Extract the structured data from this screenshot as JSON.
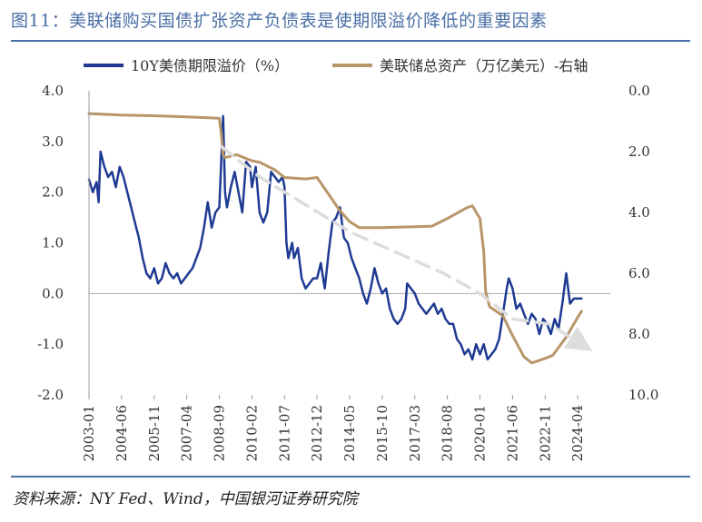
{
  "title": "图11：美联储购买国债扩张资产负债表是使期限溢价降低的重要因素",
  "source": "资料来源：NY Fed、Wind，中国银河证券研究院",
  "chart_data": {
    "type": "line",
    "x_tick_labels": [
      "2003-01",
      "2004-06",
      "2005-11",
      "2007-04",
      "2008-09",
      "2010-02",
      "2011-07",
      "2012-12",
      "2014-05",
      "2015-10",
      "2017-03",
      "2018-08",
      "2020-01",
      "2021-06",
      "2022-11",
      "2024-04"
    ],
    "left_axis": {
      "ylim": [
        -2.0,
        4.0
      ],
      "ticks": [
        "4.0",
        "3.0",
        "2.0",
        "1.0",
        "0.0",
        "-1.0",
        "-2.0"
      ]
    },
    "right_axis": {
      "ylim": [
        0.0,
        10.0
      ],
      "inverted": true,
      "ticks": [
        "0.0",
        "2.0",
        "4.0",
        "6.0",
        "8.0",
        "10.0"
      ]
    },
    "legend_placement": "top",
    "x_start": "2003-01",
    "series": [
      {
        "name": "10Y美债期限溢价（%）",
        "axis": "left",
        "color": "#1f3a93",
        "points": [
          [
            "2003-01",
            2.25
          ],
          [
            "2003-03",
            2.0
          ],
          [
            "2003-05",
            2.2
          ],
          [
            "2003-06",
            1.8
          ],
          [
            "2003-07",
            2.8
          ],
          [
            "2003-09",
            2.5
          ],
          [
            "2003-11",
            2.3
          ],
          [
            "2004-01",
            2.4
          ],
          [
            "2004-03",
            2.1
          ],
          [
            "2004-05",
            2.5
          ],
          [
            "2004-07",
            2.3
          ],
          [
            "2004-09",
            2.0
          ],
          [
            "2004-11",
            1.7
          ],
          [
            "2005-01",
            1.4
          ],
          [
            "2005-03",
            1.1
          ],
          [
            "2005-05",
            0.7
          ],
          [
            "2005-07",
            0.4
          ],
          [
            "2005-09",
            0.3
          ],
          [
            "2005-11",
            0.5
          ],
          [
            "2006-01",
            0.2
          ],
          [
            "2006-03",
            0.3
          ],
          [
            "2006-05",
            0.6
          ],
          [
            "2006-07",
            0.4
          ],
          [
            "2006-09",
            0.3
          ],
          [
            "2006-11",
            0.4
          ],
          [
            "2007-01",
            0.2
          ],
          [
            "2007-03",
            0.3
          ],
          [
            "2007-05",
            0.4
          ],
          [
            "2007-07",
            0.5
          ],
          [
            "2007-09",
            0.7
          ],
          [
            "2007-11",
            0.9
          ],
          [
            "2008-01",
            1.3
          ],
          [
            "2008-03",
            1.8
          ],
          [
            "2008-05",
            1.3
          ],
          [
            "2008-07",
            1.6
          ],
          [
            "2008-09",
            1.7
          ],
          [
            "2008-10",
            2.6
          ],
          [
            "2008-11",
            3.5
          ],
          [
            "2008-12",
            2.0
          ],
          [
            "2009-01",
            1.7
          ],
          [
            "2009-03",
            2.1
          ],
          [
            "2009-05",
            2.4
          ],
          [
            "2009-07",
            2.0
          ],
          [
            "2009-09",
            1.6
          ],
          [
            "2009-11",
            2.6
          ],
          [
            "2010-01",
            2.5
          ],
          [
            "2010-02",
            2.1
          ],
          [
            "2010-04",
            2.5
          ],
          [
            "2010-06",
            1.6
          ],
          [
            "2010-08",
            1.4
          ],
          [
            "2010-10",
            1.6
          ],
          [
            "2010-12",
            2.4
          ],
          [
            "2011-02",
            2.3
          ],
          [
            "2011-04",
            2.2
          ],
          [
            "2011-06",
            2.3
          ],
          [
            "2011-07",
            2.1
          ],
          [
            "2011-08",
            1.0
          ],
          [
            "2011-09",
            0.7
          ],
          [
            "2011-11",
            1.0
          ],
          [
            "2011-12",
            0.7
          ],
          [
            "2012-02",
            0.9
          ],
          [
            "2012-04",
            0.3
          ],
          [
            "2012-06",
            0.1
          ],
          [
            "2012-08",
            0.2
          ],
          [
            "2012-10",
            0.3
          ],
          [
            "2012-12",
            0.3
          ],
          [
            "2013-02",
            0.6
          ],
          [
            "2013-04",
            0.1
          ],
          [
            "2013-06",
            0.8
          ],
          [
            "2013-08",
            1.4
          ],
          [
            "2013-10",
            1.5
          ],
          [
            "2013-12",
            1.7
          ],
          [
            "2014-02",
            1.1
          ],
          [
            "2014-04",
            1.0
          ],
          [
            "2014-06",
            0.7
          ],
          [
            "2014-08",
            0.5
          ],
          [
            "2014-10",
            0.3
          ],
          [
            "2014-12",
            0.0
          ],
          [
            "2015-02",
            -0.2
          ],
          [
            "2015-04",
            0.1
          ],
          [
            "2015-06",
            0.5
          ],
          [
            "2015-08",
            0.2
          ],
          [
            "2015-10",
            0.0
          ],
          [
            "2015-12",
            0.1
          ],
          [
            "2016-02",
            -0.3
          ],
          [
            "2016-04",
            -0.5
          ],
          [
            "2016-06",
            -0.6
          ],
          [
            "2016-08",
            -0.5
          ],
          [
            "2016-10",
            -0.3
          ],
          [
            "2016-11",
            0.2
          ],
          [
            "2017-01",
            0.1
          ],
          [
            "2017-03",
            0.0
          ],
          [
            "2017-05",
            -0.2
          ],
          [
            "2017-07",
            -0.3
          ],
          [
            "2017-09",
            -0.4
          ],
          [
            "2017-11",
            -0.3
          ],
          [
            "2018-01",
            -0.2
          ],
          [
            "2018-03",
            -0.4
          ],
          [
            "2018-05",
            -0.3
          ],
          [
            "2018-07",
            -0.5
          ],
          [
            "2018-09",
            -0.6
          ],
          [
            "2018-11",
            -0.6
          ],
          [
            "2019-01",
            -0.9
          ],
          [
            "2019-03",
            -1.0
          ],
          [
            "2019-05",
            -1.2
          ],
          [
            "2019-07",
            -1.1
          ],
          [
            "2019-09",
            -1.3
          ],
          [
            "2019-11",
            -1.0
          ],
          [
            "2020-01",
            -1.2
          ],
          [
            "2020-03",
            -1.0
          ],
          [
            "2020-05",
            -1.3
          ],
          [
            "2020-07",
            -1.2
          ],
          [
            "2020-09",
            -1.1
          ],
          [
            "2020-11",
            -0.9
          ],
          [
            "2021-01",
            -0.4
          ],
          [
            "2021-03",
            0.1
          ],
          [
            "2021-04",
            0.3
          ],
          [
            "2021-06",
            0.1
          ],
          [
            "2021-08",
            -0.3
          ],
          [
            "2021-10",
            -0.2
          ],
          [
            "2021-12",
            -0.4
          ],
          [
            "2022-02",
            -0.6
          ],
          [
            "2022-04",
            -0.4
          ],
          [
            "2022-06",
            -0.5
          ],
          [
            "2022-08",
            -0.8
          ],
          [
            "2022-10",
            -0.5
          ],
          [
            "2022-12",
            -0.6
          ],
          [
            "2023-02",
            -0.8
          ],
          [
            "2023-04",
            -0.5
          ],
          [
            "2023-06",
            -0.7
          ],
          [
            "2023-08",
            -0.2
          ],
          [
            "2023-10",
            0.4
          ],
          [
            "2023-12",
            -0.2
          ],
          [
            "2024-02",
            -0.1
          ],
          [
            "2024-04",
            -0.1
          ],
          [
            "2024-06",
            -0.1
          ]
        ]
      },
      {
        "name": "美联储总资产（万亿美元）-右轴",
        "axis": "right",
        "color": "#b8966a",
        "points": [
          [
            "2003-01",
            0.75
          ],
          [
            "2004-06",
            0.8
          ],
          [
            "2005-11",
            0.82
          ],
          [
            "2007-04",
            0.86
          ],
          [
            "2008-09",
            0.9
          ],
          [
            "2008-10",
            1.4
          ],
          [
            "2008-11",
            2.1
          ],
          [
            "2008-12",
            2.2
          ],
          [
            "2009-06",
            2.1
          ],
          [
            "2010-02",
            2.3
          ],
          [
            "2010-06",
            2.35
          ],
          [
            "2011-02",
            2.6
          ],
          [
            "2011-07",
            2.85
          ],
          [
            "2012-06",
            2.9
          ],
          [
            "2012-12",
            2.85
          ],
          [
            "2013-06",
            3.4
          ],
          [
            "2013-12",
            3.95
          ],
          [
            "2014-05",
            4.3
          ],
          [
            "2014-10",
            4.5
          ],
          [
            "2015-10",
            4.5
          ],
          [
            "2017-03",
            4.47
          ],
          [
            "2017-12",
            4.45
          ],
          [
            "2018-08",
            4.2
          ],
          [
            "2019-06",
            3.85
          ],
          [
            "2019-09",
            3.78
          ],
          [
            "2019-12",
            4.1
          ],
          [
            "2020-01",
            4.2
          ],
          [
            "2020-03",
            5.3
          ],
          [
            "2020-04",
            6.6
          ],
          [
            "2020-06",
            7.1
          ],
          [
            "2021-01",
            7.4
          ],
          [
            "2021-06",
            8.05
          ],
          [
            "2021-12",
            8.75
          ],
          [
            "2022-04",
            8.95
          ],
          [
            "2022-11",
            8.8
          ],
          [
            "2023-03",
            8.7
          ],
          [
            "2023-10",
            8.1
          ],
          [
            "2024-04",
            7.45
          ],
          [
            "2024-06",
            7.25
          ]
        ]
      },
      {
        "name": "",
        "axis": "left",
        "style": "dashed-arrow",
        "color": "#dddddd",
        "points": [
          [
            "2008-10",
            2.9
          ],
          [
            "2010-06",
            2.3
          ],
          [
            "2014-06",
            1.2
          ],
          [
            "2018-06",
            0.4
          ],
          [
            "2020-01",
            0.0
          ],
          [
            "2021-06",
            -0.5
          ],
          [
            "2023-01",
            -0.6
          ],
          [
            "2024-06",
            -1.0
          ]
        ]
      }
    ]
  }
}
